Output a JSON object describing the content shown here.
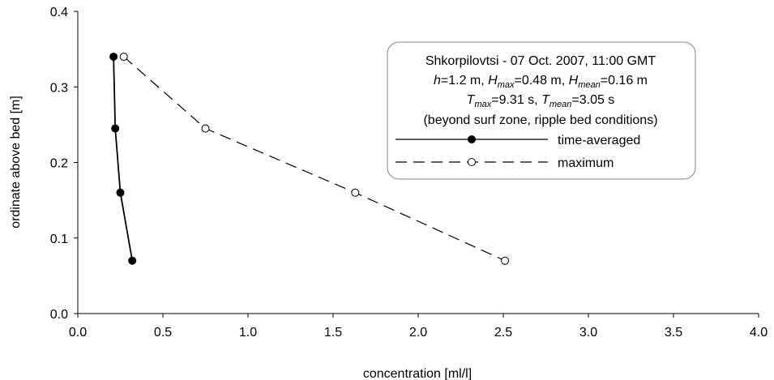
{
  "chart_data": {
    "type": "line",
    "title": "",
    "xlabel": "concentration [ml/l]",
    "ylabel": "ordinate above bed [m]",
    "xlim": [
      0.0,
      4.0
    ],
    "ylim": [
      0.0,
      0.4
    ],
    "x_ticks": [
      "0.0",
      "0.5",
      "1.0",
      "1.5",
      "2.0",
      "2.5",
      "3.0",
      "3.5",
      "4.0"
    ],
    "y_ticks": [
      "0.0",
      "0.1",
      "0.2",
      "0.3",
      "0.4"
    ],
    "grid": false,
    "legend_placement": "top-right",
    "annotation": {
      "line1": "Shkorpilovtsi - 07 Oct. 2007, 11:00 GMT",
      "line2": {
        "h": "h",
        "h_val": "=1.2 m, ",
        "H1": "H",
        "H1_sub": "max",
        "H1_val": "=0.48 m, ",
        "H2": "H",
        "H2_sub": "mean",
        "H2_val": "=0.16 m"
      },
      "line3": {
        "T1": "T",
        "T1_sub": "max",
        "T1_val": "=9.31 s, ",
        "T2": "T",
        "T2_sub": "mean",
        "T2_val": "=3.05 s"
      },
      "line4": "(beyond surf zone, ripple bed conditions)"
    },
    "series": [
      {
        "name": "time-averaged",
        "style": "solid",
        "marker": "filled-circle",
        "color": "#000000",
        "points": [
          {
            "x": 0.21,
            "y": 0.34
          },
          {
            "x": 0.22,
            "y": 0.245
          },
          {
            "x": 0.25,
            "y": 0.16
          },
          {
            "x": 0.32,
            "y": 0.07
          }
        ]
      },
      {
        "name": "maximum",
        "style": "dashed",
        "marker": "open-circle",
        "color": "#000000",
        "points": [
          {
            "x": 0.27,
            "y": 0.34
          },
          {
            "x": 0.75,
            "y": 0.245
          },
          {
            "x": 1.63,
            "y": 0.16
          },
          {
            "x": 2.51,
            "y": 0.07
          }
        ]
      }
    ]
  }
}
